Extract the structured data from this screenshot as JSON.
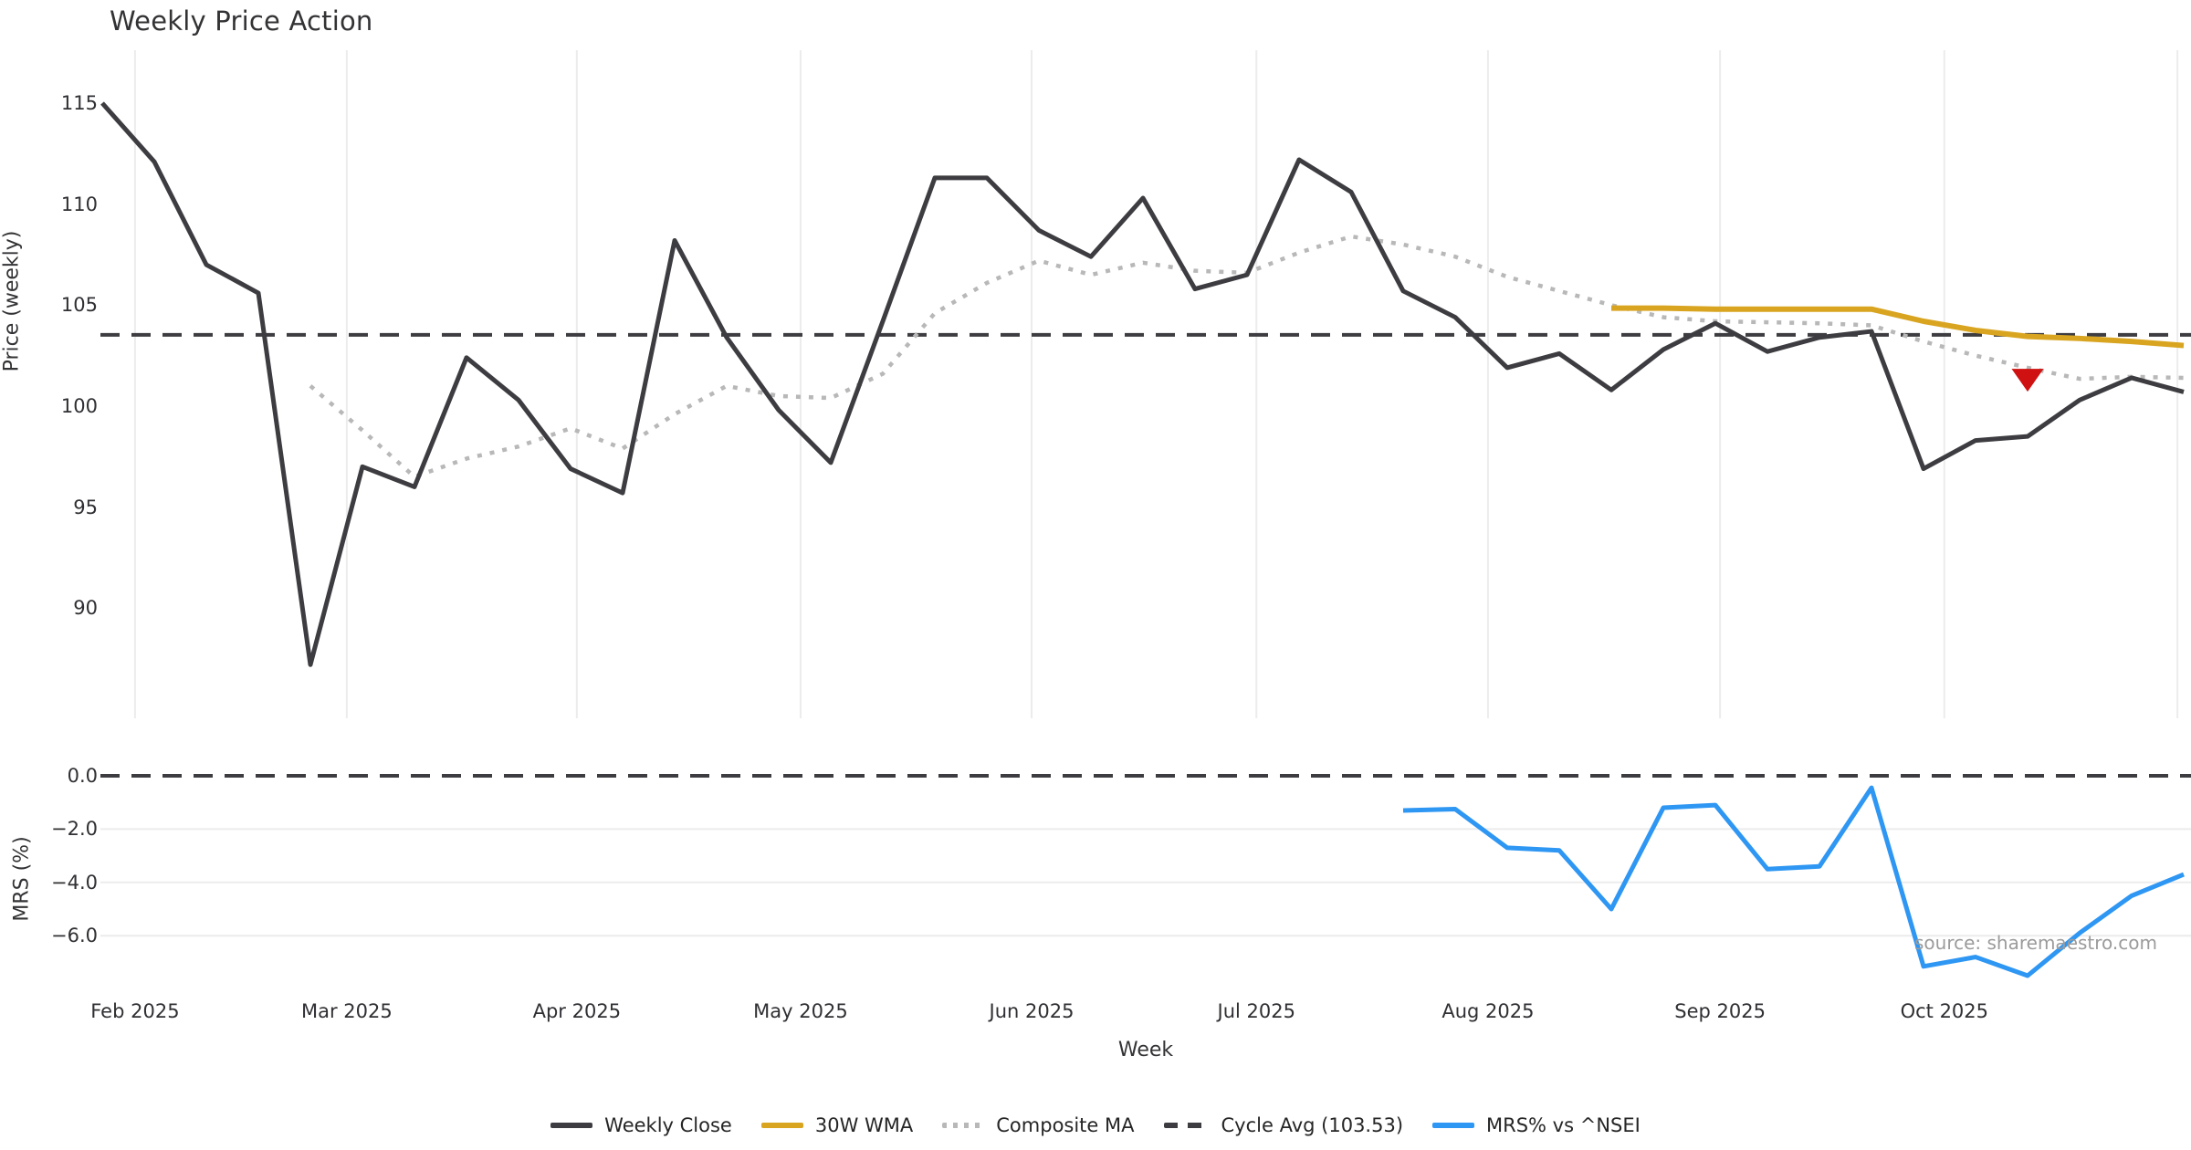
{
  "title": "Weekly Price Action",
  "source": "source: sharemaestro.com",
  "axes": {
    "price_label": "Price (weekly)",
    "mrs_label": "MRS (%)",
    "x_label": "Week",
    "price_tick_labels": [
      "115",
      "110",
      "105",
      "100",
      "95",
      "90"
    ],
    "price_tick_values": [
      115,
      110,
      105,
      100,
      95,
      90
    ],
    "mrs_tick_labels": [
      "0.0",
      "−2.0",
      "−4.0",
      "−6.0"
    ],
    "mrs_tick_values": [
      0,
      -2,
      -4,
      -6
    ]
  },
  "legend": [
    {
      "label": "Weekly Close",
      "color": "#3d3d41",
      "style": "solid"
    },
    {
      "label": "30W WMA",
      "color": "#d9a521",
      "style": "solid"
    },
    {
      "label": "Composite MA",
      "color": "#b8b8b8",
      "style": "dotted"
    },
    {
      "label": "Cycle Avg (103.53)",
      "color": "#3d3d41",
      "style": "dashed"
    },
    {
      "label": "MRS% vs ^NSEI",
      "color": "#2e96f3",
      "style": "solid"
    }
  ],
  "colors": {
    "background": "#ffffff",
    "grid": "#ececec",
    "weekly_close": "#3d3d41",
    "wma_30": "#d9a521",
    "composite_ma": "#b8b8b8",
    "cycle_avg": "#3d3d41",
    "mrs": "#2e96f3",
    "sell_marker": "#cf1111",
    "text": "#303034",
    "source_text": "#9b9b9b"
  },
  "chart_data": {
    "type": "line",
    "title": "Weekly Price Action",
    "xlabel": "Week",
    "x_unit": "week-index (0 = late Jan 2025, weekly spacing)",
    "x_range": [
      0,
      40
    ],
    "x": {
      "month_ticks": [
        {
          "label": "Feb 2025",
          "week": 0.63
        },
        {
          "label": "Mar 2025",
          "week": 4.7
        },
        {
          "label": "Apr 2025",
          "week": 9.12
        },
        {
          "label": "May 2025",
          "week": 13.42
        },
        {
          "label": "Jun 2025",
          "week": 17.86
        },
        {
          "label": "Jul 2025",
          "week": 22.18
        },
        {
          "label": "Aug 2025",
          "week": 26.63
        },
        {
          "label": "Sep 2025",
          "week": 31.09
        },
        {
          "label": "Oct 2025",
          "week": 35.4
        }
      ],
      "gridline_weeks": [
        0.63,
        4.7,
        9.12,
        13.42,
        17.86,
        22.18,
        26.63,
        31.09,
        35.4,
        39.88
      ]
    },
    "panels": [
      {
        "name": "price",
        "ylabel": "Price (weekly)",
        "ylim": [
          86,
          116.5
        ],
        "yticks": [
          115,
          110,
          105,
          100,
          95,
          90
        ],
        "grid": "vertical-months-only",
        "series": [
          {
            "name": "Weekly Close",
            "style": "solid",
            "color": "#3d3d41",
            "start_week": 0,
            "values": [
              115.0,
              112.1,
              107.0,
              105.6,
              87.2,
              97.0,
              96.0,
              102.4,
              100.3,
              96.9,
              95.7,
              108.2,
              103.4,
              99.8,
              97.2,
              104.2,
              111.3,
              111.3,
              108.7,
              107.4,
              110.3,
              105.8,
              106.5,
              112.2,
              110.6,
              105.7,
              104.4,
              101.9,
              102.6,
              100.8,
              102.8,
              104.1,
              102.7,
              103.4,
              103.7,
              96.9,
              98.3,
              98.5,
              100.3,
              101.4,
              100.7
            ]
          },
          {
            "name": "Composite MA",
            "style": "dotted",
            "color": "#b8b8b8",
            "start_week": 4,
            "values": [
              101.0,
              98.8,
              96.5,
              97.4,
              98.0,
              98.9,
              97.9,
              99.6,
              101.0,
              100.5,
              100.4,
              101.6,
              104.6,
              106.1,
              107.2,
              106.5,
              107.1,
              106.7,
              106.6,
              107.6,
              108.4,
              108.0,
              107.4,
              106.4,
              105.7,
              105.0,
              104.4,
              104.2,
              104.15,
              104.1,
              104.0,
              103.2,
              102.5,
              101.9,
              101.35,
              101.45,
              101.4
            ]
          },
          {
            "name": "30W WMA",
            "style": "solid",
            "color": "#d9a521",
            "start_week": 29,
            "values": [
              104.85,
              104.85,
              104.8,
              104.8,
              104.8,
              104.8,
              104.2,
              103.75,
              103.45,
              103.35,
              103.2,
              103.0
            ]
          },
          {
            "name": "Cycle Avg",
            "style": "dashed",
            "color": "#3d3d41",
            "constant": 103.53
          }
        ],
        "markers": [
          {
            "name": "sell-signal",
            "shape": "triangle-down",
            "color": "#cf1111",
            "week": 37,
            "value": 101.3
          }
        ]
      },
      {
        "name": "mrs",
        "ylabel": "MRS (%)",
        "ylim": [
          -8.0,
          0.6
        ],
        "yticks": [
          0,
          -2,
          -4,
          -6
        ],
        "grid": "horizontal-only",
        "series": [
          {
            "name": "MRS% vs ^NSEI",
            "style": "solid",
            "color": "#2e96f3",
            "start_week": 25,
            "values": [
              -1.3,
              -1.25,
              -2.7,
              -2.8,
              -5.0,
              -1.2,
              -1.1,
              -3.5,
              -3.4,
              -0.45,
              -7.15,
              -6.8,
              -7.5,
              -5.9,
              -4.5,
              -3.7
            ]
          },
          {
            "name": "Zero line",
            "style": "dashed",
            "color": "#3d3d41",
            "constant": 0
          }
        ]
      }
    ],
    "legend_position": "bottom-center"
  }
}
